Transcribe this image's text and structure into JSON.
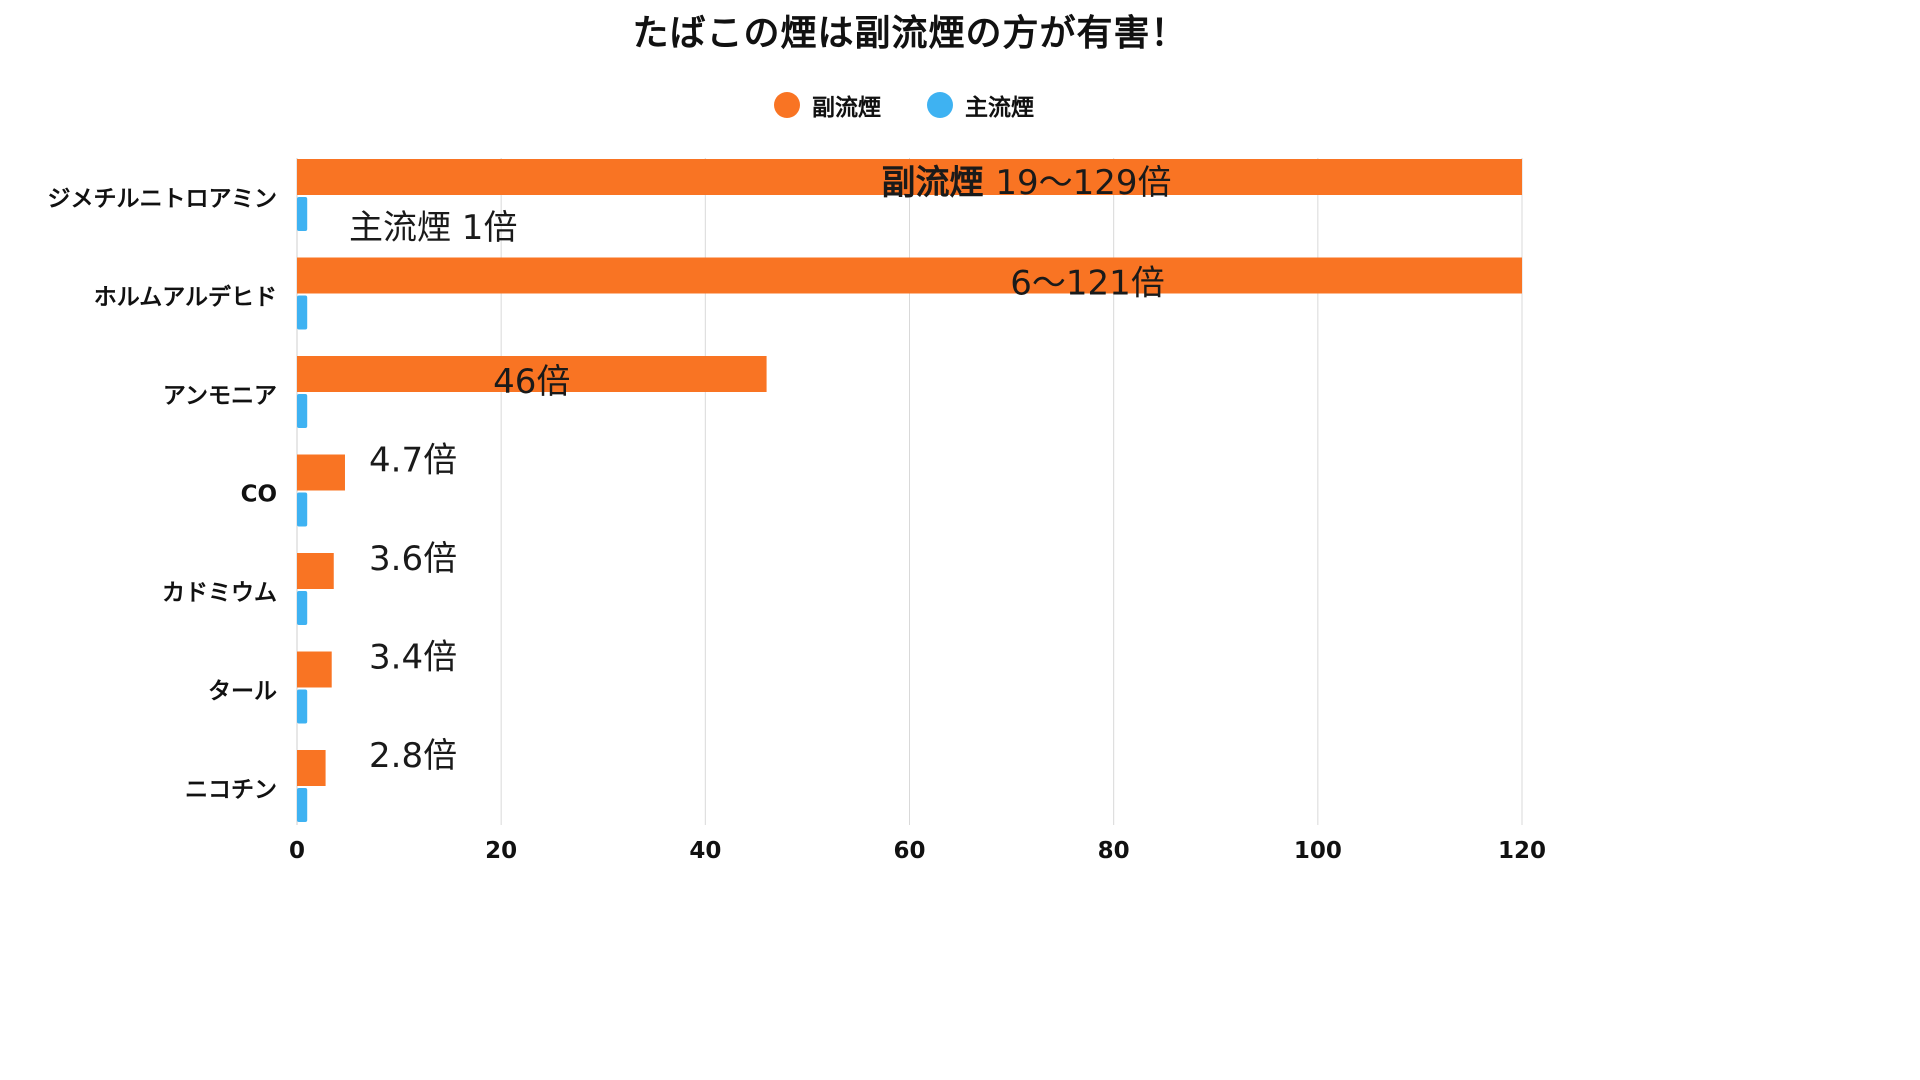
{
  "chart_data": {
    "type": "bar",
    "orientation": "horizontal",
    "title": "たばこの煙は副流煙の方が有害！",
    "categories": [
      "ジメチルニトロアミン",
      "ホルムアルデヒド",
      "アンモニア",
      "CO",
      "カドミウム",
      "タール",
      "ニコチン"
    ],
    "series": [
      {
        "name": "副流煙",
        "color": "#f97423",
        "values": [
          129,
          121,
          46,
          4.7,
          3.6,
          3.4,
          2.8
        ],
        "labels": [
          "19〜129倍",
          "6〜121倍",
          "46倍",
          "4.7倍",
          "3.6倍",
          "3.4倍",
          "2.8倍"
        ]
      },
      {
        "name": "主流煙",
        "color": "#3eb2f2",
        "values": [
          1,
          1,
          1,
          1,
          1,
          1,
          1
        ],
        "labels": [
          "1倍",
          "",
          "",
          "",
          "",
          "",
          ""
        ]
      }
    ],
    "xlim": [
      0,
      120
    ],
    "xticks": [
      0,
      20,
      40,
      60,
      80,
      100,
      120
    ],
    "grid": true,
    "legend_position": "top-center"
  }
}
